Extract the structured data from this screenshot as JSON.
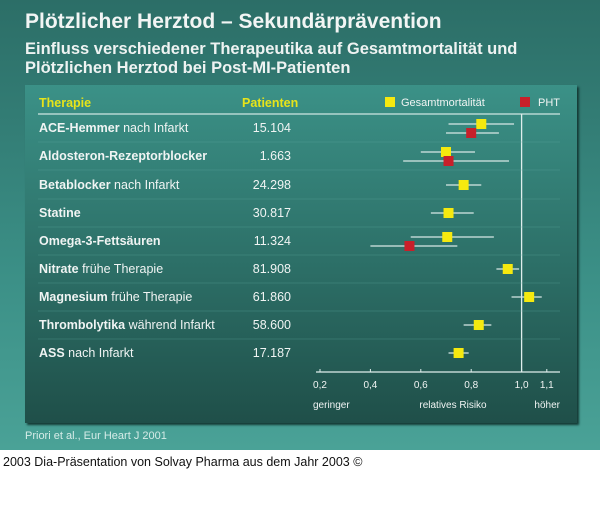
{
  "title": "Plötzlicher Herztod – Sekundärprävention",
  "subtitle_line1": "Einfluss verschiedener Therapeutika auf Gesamtmortalität und",
  "subtitle_line2": "Plötzlichen Herztod bei Post-MI-Patienten",
  "source": "Priori et al., Eur Heart J 2001",
  "caption": "2003 Dia-Präsentation von Solvay Pharma aus dem Jahr 2003 ©",
  "colors": {
    "gesamt": "#f5e90f",
    "pht": "#c8202a",
    "header": "#e7e41a"
  },
  "chart_data": {
    "type": "scatter",
    "subtype": "forest-plot",
    "col_therapie": "Therapie",
    "col_patienten": "Patienten",
    "legend": [
      {
        "name": "Gesamtmortalität",
        "color": "#f5e90f"
      },
      {
        "name": "PHT",
        "color": "#c8202a"
      }
    ],
    "legend_position": "top-right",
    "xlabel": "relatives Risiko",
    "xlabel_left": "geringer",
    "xlabel_right": "höher",
    "xlim": [
      0.2,
      1.1
    ],
    "xticks": [
      "0,2",
      "0,4",
      "0,6",
      "0,8",
      "1,0",
      "1,1"
    ],
    "xtick_values": [
      0.2,
      0.4,
      0.6,
      0.8,
      1.0,
      1.1
    ],
    "reference_line": 1.0,
    "rows": [
      {
        "bold": "ACE-Hemmer",
        "rest": " nach Infarkt",
        "patients": "15.104",
        "gesamt": {
          "rr": 0.84,
          "ci": [
            0.71,
            0.97
          ]
        },
        "pht": {
          "rr": 0.8,
          "ci": [
            0.7,
            0.91
          ]
        }
      },
      {
        "bold": "Aldosteron-Rezeptorblocker",
        "rest": "",
        "patients": "1.663",
        "gesamt": {
          "rr": 0.7,
          "ci": [
            0.6,
            0.815
          ]
        },
        "pht": {
          "rr": 0.71,
          "ci": [
            0.53,
            0.95
          ]
        }
      },
      {
        "bold": "Betablocker",
        "rest": " nach Infarkt",
        "patients": "24.298",
        "gesamt": {
          "rr": 0.77,
          "ci": [
            0.7,
            0.84
          ]
        }
      },
      {
        "bold": "Statine",
        "rest": "",
        "patients": "30.817",
        "gesamt": {
          "rr": 0.71,
          "ci": [
            0.64,
            0.81
          ]
        }
      },
      {
        "bold": "Omega-3-Fettsäuren",
        "rest": "",
        "patients": "11.324",
        "gesamt": {
          "rr": 0.705,
          "ci": [
            0.56,
            0.89
          ]
        },
        "pht": {
          "rr": 0.555,
          "ci": [
            0.4,
            0.745
          ]
        }
      },
      {
        "bold": "Nitrate",
        "rest": " frühe Therapie",
        "patients": "81.908",
        "gesamt": {
          "rr": 0.945,
          "ci": [
            0.9,
            0.99
          ]
        }
      },
      {
        "bold": "Magnesium",
        "rest": " frühe Therapie",
        "patients": "61.860",
        "gesamt": {
          "rr": 1.03,
          "ci": [
            0.96,
            1.08
          ]
        }
      },
      {
        "bold": "Thrombolytika",
        "rest": " während Infarkt",
        "patients": "58.600",
        "gesamt": {
          "rr": 0.83,
          "ci": [
            0.77,
            0.88
          ]
        }
      },
      {
        "bold": "ASS",
        "rest": " nach Infarkt",
        "patients": "17.187",
        "gesamt": {
          "rr": 0.75,
          "ci": [
            0.71,
            0.79
          ]
        }
      }
    ]
  }
}
